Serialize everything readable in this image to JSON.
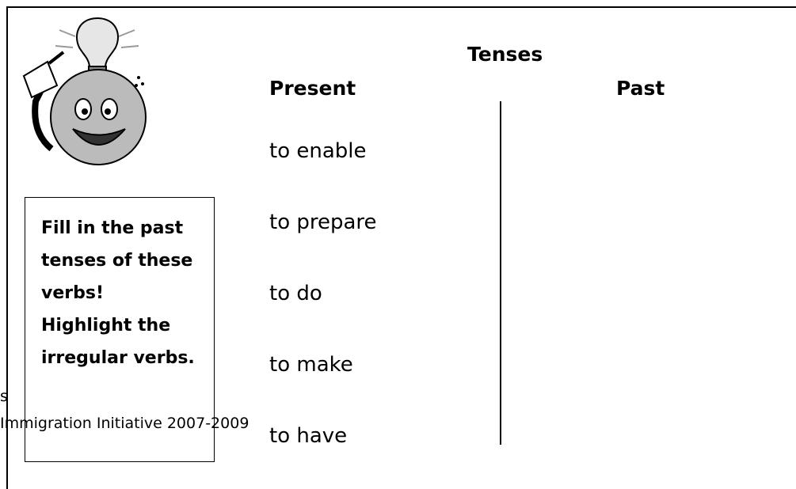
{
  "header": {
    "title": "Tenses"
  },
  "columns": [
    "Present",
    "Past"
  ],
  "verbs": [
    "to enable",
    "to prepare",
    "to do",
    "to make",
    "to have"
  ],
  "instructions": [
    "Fill in the past tenses of these verbs!",
    "Highlight the irregular verbs."
  ],
  "footer": {
    "fragment": "s",
    "credit": "Immigration Initiative 2007-2009"
  }
}
